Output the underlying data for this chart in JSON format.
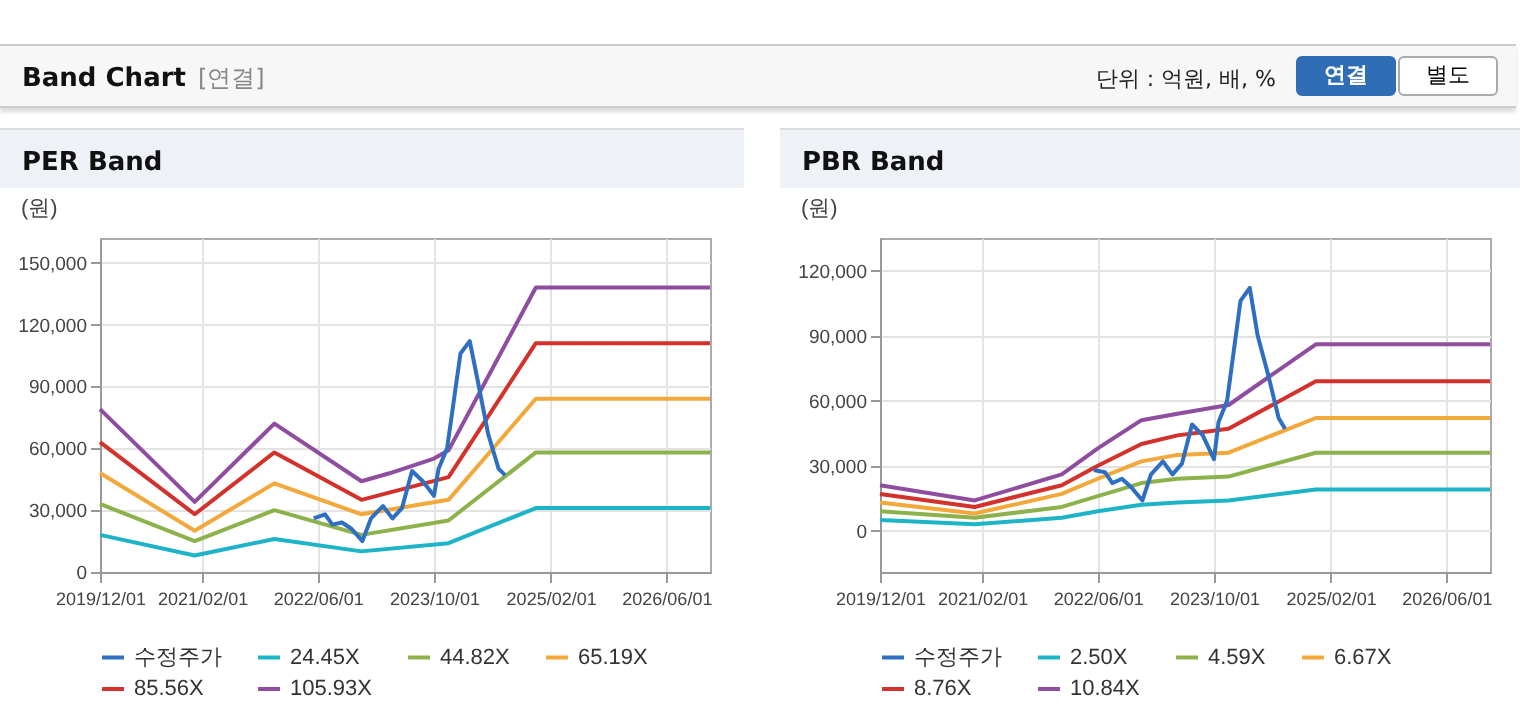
{
  "chart_data": [
    {
      "type": "other",
      "title": "Band Chart",
      "annotations": [
        "[연결]",
        "단위 : 억원, 배, %",
        "연결",
        "별도"
      ]
    },
    {
      "type": "line",
      "title": "PER Band",
      "ylabel": "(원)",
      "grid": true,
      "legend": "bottom",
      "marker": "none",
      "line_style": "solid",
      "xlim": [
        "2019-12-01",
        "2026-12-01"
      ],
      "xticks": [
        {
          "value": "2019-12-01",
          "label": "2019/12/01"
        },
        {
          "value": "2021-02-01",
          "label": "2021/02/01"
        },
        {
          "value": "2022-06-01",
          "label": "2022/06/01"
        },
        {
          "value": "2023-10-01",
          "label": "2023/10/01"
        },
        {
          "value": "2025-02-01",
          "label": "2025/02/01"
        },
        {
          "value": "2026-06-01",
          "label": "2026/06/01"
        }
      ],
      "ylim": [
        0,
        162000
      ],
      "yticks": [
        0,
        {
          "value": 30000,
          "label": "30,000"
        },
        {
          "value": 60000,
          "label": "60,000"
        },
        {
          "value": 90000,
          "label": "90,000"
        },
        {
          "value": 120000,
          "label": "120,000"
        },
        {
          "value": 150000,
          "label": "150,000"
        }
      ],
      "series": [
        {
          "name": "수정주가",
          "color": "#2f6fc2",
          "x": [
            "2022-05-15",
            "2022-07-01",
            "2022-08-01",
            "2022-09-10",
            "2022-10-20",
            "2022-12-05",
            "2023-01-10",
            "2023-03-01",
            "2023-04-10",
            "2023-05-20",
            "2023-07-01",
            "2023-08-15",
            "2023-10-01",
            "2023-10-20",
            "2023-11-25",
            "2024-01-20",
            "2024-02-28",
            "2024-04-01",
            "2024-05-15",
            "2024-06-28",
            "2024-07-25"
          ],
          "values": [
            26000,
            28000,
            23000,
            24000,
            21000,
            15000,
            26000,
            32000,
            26000,
            31000,
            49000,
            44000,
            37000,
            50000,
            60000,
            106000,
            112000,
            93000,
            67000,
            50000,
            47000
          ]
        },
        {
          "name": "24.45X",
          "color": "#1eb4c8",
          "x": [
            "2019-12-01",
            "2021-01-01",
            "2021-12-01",
            "2022-12-01",
            "2023-12-01",
            "2024-12-01",
            "2026-12-01"
          ],
          "values": [
            18000,
            8000,
            16000,
            10000,
            14000,
            31000,
            31000
          ]
        },
        {
          "name": "44.82X",
          "color": "#8db24c",
          "x": [
            "2019-12-01",
            "2021-01-01",
            "2021-12-01",
            "2022-12-01",
            "2023-12-01",
            "2024-12-01",
            "2026-12-01"
          ],
          "values": [
            33000,
            15000,
            30000,
            18000,
            25000,
            58000,
            58000
          ]
        },
        {
          "name": "65.19X",
          "color": "#f3a83b",
          "x": [
            "2019-12-01",
            "2021-01-01",
            "2021-12-01",
            "2022-12-01",
            "2023-12-01",
            "2024-12-01",
            "2026-12-01"
          ],
          "values": [
            48000,
            20000,
            43000,
            28000,
            35000,
            84000,
            84000
          ]
        },
        {
          "name": "85.56X",
          "color": "#d2322b",
          "x": [
            "2019-12-01",
            "2021-01-01",
            "2021-12-01",
            "2022-12-01",
            "2023-12-01",
            "2024-12-01",
            "2026-12-01"
          ],
          "values": [
            63000,
            28000,
            58000,
            35000,
            46000,
            111000,
            111000
          ]
        },
        {
          "name": "105.93X",
          "color": "#8f4d9f",
          "x": [
            "2019-12-01",
            "2021-01-01",
            "2021-12-01",
            "2022-12-01",
            "2023-04-01",
            "2023-10-01",
            "2023-12-01",
            "2024-12-01",
            "2026-12-01"
          ],
          "values": [
            79000,
            34000,
            72000,
            44000,
            48000,
            55000,
            59000,
            138000,
            138000
          ]
        }
      ]
    },
    {
      "type": "line",
      "title": "PBR Band",
      "ylabel": "(원)",
      "grid": true,
      "legend": "bottom",
      "marker": "none",
      "line_style": "solid",
      "xlim": [
        "2019-12-01",
        "2026-12-01"
      ],
      "xticks": [
        {
          "value": "2019-12-01",
          "label": "2019/12/01"
        },
        {
          "value": "2021-02-01",
          "label": "2021/02/01"
        },
        {
          "value": "2022-06-01",
          "label": "2022/06/01"
        },
        {
          "value": "2023-10-01",
          "label": "2023/10/01"
        },
        {
          "value": "2025-02-01",
          "label": "2025/02/01"
        },
        {
          "value": "2026-06-01",
          "label": "2026/06/01"
        }
      ],
      "ylim": [
        -19000,
        135000
      ],
      "yticks": [
        0,
        {
          "value": 30000,
          "label": "30,000"
        },
        {
          "value": 60000,
          "label": "60,000"
        },
        {
          "value": 90000,
          "label": "90,000"
        },
        {
          "value": 120000,
          "label": "120,000"
        }
      ],
      "series": [
        {
          "name": "수정주가",
          "color": "#2f6fc2",
          "x": [
            "2022-05-15",
            "2022-07-01",
            "2022-08-01",
            "2022-09-10",
            "2022-10-20",
            "2022-12-05",
            "2023-01-10",
            "2023-03-01",
            "2023-04-10",
            "2023-05-20",
            "2023-07-01",
            "2023-08-15",
            "2023-10-01",
            "2023-10-20",
            "2023-11-25",
            "2024-01-20",
            "2024-02-28",
            "2024-04-01",
            "2024-05-15",
            "2024-06-28",
            "2024-07-25"
          ],
          "values": [
            28000,
            27000,
            22000,
            24000,
            20000,
            14000,
            26000,
            32000,
            26000,
            31000,
            49000,
            44000,
            33000,
            50000,
            60000,
            106000,
            112000,
            90000,
            72000,
            52000,
            47000
          ]
        },
        {
          "name": "2.50X",
          "color": "#1eb4c8",
          "x": [
            "2019-12-01",
            "2021-01-01",
            "2022-01-01",
            "2022-06-01",
            "2022-12-01",
            "2023-05-01",
            "2023-12-01",
            "2024-12-01",
            "2026-12-01"
          ],
          "values": [
            5000,
            3000,
            6000,
            9000,
            12000,
            13000,
            14000,
            19000,
            19000
          ]
        },
        {
          "name": "4.59X",
          "color": "#8db24c",
          "x": [
            "2019-12-01",
            "2021-01-01",
            "2022-01-01",
            "2022-06-01",
            "2022-12-01",
            "2023-05-01",
            "2023-12-01",
            "2024-12-01",
            "2026-12-01"
          ],
          "values": [
            9000,
            6000,
            11000,
            16000,
            22000,
            24000,
            25000,
            36000,
            36000
          ]
        },
        {
          "name": "6.67X",
          "color": "#f3a83b",
          "x": [
            "2019-12-01",
            "2021-01-01",
            "2022-01-01",
            "2022-06-01",
            "2022-12-01",
            "2023-05-01",
            "2023-12-01",
            "2024-12-01",
            "2026-12-01"
          ],
          "values": [
            13000,
            8000,
            17000,
            24000,
            32000,
            35000,
            36000,
            52000,
            52000
          ]
        },
        {
          "name": "8.76X",
          "color": "#d2322b",
          "x": [
            "2019-12-01",
            "2021-01-01",
            "2022-01-01",
            "2022-06-01",
            "2022-12-01",
            "2023-05-01",
            "2023-12-01",
            "2024-12-01",
            "2026-12-01"
          ],
          "values": [
            17000,
            11000,
            21000,
            30000,
            40000,
            44000,
            47000,
            69000,
            69000
          ]
        },
        {
          "name": "10.84X",
          "color": "#8f4d9f",
          "x": [
            "2019-12-01",
            "2021-01-01",
            "2022-01-01",
            "2022-06-01",
            "2022-12-01",
            "2023-05-01",
            "2023-12-01",
            "2024-12-01",
            "2026-12-01"
          ],
          "values": [
            21000,
            14000,
            26000,
            38000,
            51000,
            54000,
            58000,
            86000,
            86000
          ]
        }
      ]
    }
  ]
}
